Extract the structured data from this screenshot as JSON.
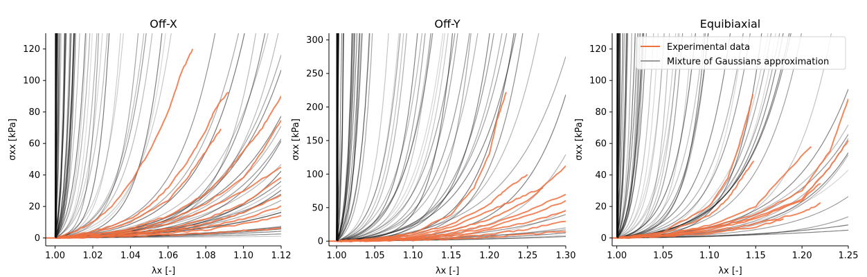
{
  "figure": {
    "legend": {
      "location": "upper-right",
      "panel": 2,
      "entries": [
        {
          "label": "Experimental data",
          "color": "#f07040"
        },
        {
          "label": "Mixture of Gaussians approximation",
          "color": "#999999"
        }
      ]
    },
    "colors": {
      "experimental": "#f07040",
      "model": "#000000"
    }
  },
  "chart_data": [
    {
      "type": "line",
      "title": "Off-X",
      "xlabel": "λx [-]",
      "ylabel": "σxx [kPa]",
      "xlim": [
        0.995,
        1.12
      ],
      "ylim": [
        -5,
        130
      ],
      "xticks": [
        "1.00",
        "1.02",
        "1.04",
        "1.06",
        "1.08",
        "1.10",
        "1.12"
      ],
      "xtick_values": [
        1.0,
        1.02,
        1.04,
        1.06,
        1.08,
        1.1,
        1.12
      ],
      "yticks": [
        "0",
        "20",
        "40",
        "60",
        "80",
        "100",
        "120"
      ],
      "ytick_values": [
        0,
        20,
        40,
        60,
        80,
        100,
        120
      ],
      "experimental_series": [
        {
          "x": [
            1.0,
            1.01,
            1.02,
            1.03,
            1.04,
            1.05,
            1.06,
            1.067,
            1.073
          ],
          "y": [
            0,
            4,
            10,
            20,
            35,
            55,
            80,
            105,
            120
          ]
        },
        {
          "x": [
            1.0,
            1.02,
            1.04,
            1.05,
            1.06,
            1.07,
            1.08,
            1.085,
            1.092
          ],
          "y": [
            0,
            4,
            12,
            20,
            32,
            48,
            68,
            82,
            93
          ]
        },
        {
          "x": [
            1.0,
            1.02,
            1.04,
            1.06,
            1.07,
            1.08,
            1.088
          ],
          "y": [
            0,
            3,
            10,
            24,
            38,
            55,
            69
          ]
        },
        {
          "x": [
            1.0,
            1.02,
            1.04,
            1.06,
            1.08,
            1.09,
            1.1,
            1.11,
            1.12
          ],
          "y": [
            0,
            2,
            6,
            14,
            28,
            40,
            55,
            70,
            90
          ]
        },
        {
          "x": [
            1.0,
            1.02,
            1.04,
            1.06,
            1.08,
            1.1,
            1.11,
            1.12
          ],
          "y": [
            0,
            2,
            5,
            11,
            22,
            38,
            55,
            75
          ]
        },
        {
          "x": [
            1.0,
            1.02,
            1.04,
            1.06,
            1.08,
            1.1,
            1.12
          ],
          "y": [
            0,
            1.5,
            4,
            9,
            18,
            30,
            45
          ]
        },
        {
          "x": [
            1.0,
            1.02,
            1.04,
            1.06,
            1.08,
            1.1,
            1.12
          ],
          "y": [
            0,
            1,
            3,
            6,
            12,
            22,
            38
          ]
        },
        {
          "x": [
            1.0,
            1.02,
            1.04,
            1.06,
            1.08,
            1.1,
            1.12
          ],
          "y": [
            0,
            1,
            2.5,
            5,
            9,
            16,
            27
          ]
        },
        {
          "x": [
            1.0,
            1.02,
            1.04,
            1.06,
            1.08,
            1.1,
            1.12
          ],
          "y": [
            0,
            0.8,
            2,
            4,
            7,
            12,
            20
          ]
        },
        {
          "x": [
            1.0,
            1.02,
            1.04,
            1.06,
            1.08,
            1.1,
            1.12
          ],
          "y": [
            0,
            0.5,
            1.5,
            3,
            5,
            9,
            14
          ]
        },
        {
          "x": [
            1.0,
            1.02,
            1.04,
            1.06,
            1.08,
            1.1,
            1.12
          ],
          "y": [
            0,
            0.5,
            1,
            2,
            3,
            4.5,
            6
          ]
        }
      ]
    },
    {
      "type": "line",
      "title": "Off-Y",
      "xlabel": "λx [-]",
      "ylabel": "σxx [kPa]",
      "xlim": [
        0.99,
        1.3
      ],
      "ylim": [
        -7,
        310
      ],
      "xticks": [
        "1.00",
        "1.05",
        "1.10",
        "1.15",
        "1.20",
        "1.25",
        "1.30"
      ],
      "xtick_values": [
        1.0,
        1.05,
        1.1,
        1.15,
        1.2,
        1.25,
        1.3
      ],
      "yticks": [
        "0",
        "50",
        "100",
        "150",
        "200",
        "250",
        "300"
      ],
      "ytick_values": [
        0,
        50,
        100,
        150,
        200,
        250,
        300
      ],
      "experimental_series": [
        {
          "x": [
            1.0,
            1.05,
            1.1,
            1.15,
            1.18,
            1.2,
            1.21,
            1.222
          ],
          "y": [
            0,
            3,
            12,
            40,
            80,
            130,
            180,
            222
          ]
        },
        {
          "x": [
            1.0,
            1.05,
            1.1,
            1.15,
            1.2,
            1.22,
            1.25
          ],
          "y": [
            0,
            3,
            10,
            25,
            55,
            75,
            100
          ]
        },
        {
          "x": [
            1.0,
            1.05,
            1.1,
            1.15,
            1.2,
            1.24,
            1.27
          ],
          "y": [
            0,
            2,
            8,
            20,
            45,
            65,
            80
          ]
        },
        {
          "x": [
            1.0,
            1.05,
            1.1,
            1.15,
            1.2,
            1.25,
            1.3
          ],
          "y": [
            0,
            2,
            6,
            16,
            32,
            60,
            112
          ]
        },
        {
          "x": [
            1.0,
            1.05,
            1.1,
            1.15,
            1.2,
            1.25,
            1.3
          ],
          "y": [
            0,
            1.5,
            5,
            12,
            25,
            45,
            70
          ]
        },
        {
          "x": [
            1.0,
            1.05,
            1.1,
            1.15,
            1.2,
            1.25,
            1.3
          ],
          "y": [
            0,
            1,
            4,
            10,
            20,
            38,
            60
          ]
        },
        {
          "x": [
            1.0,
            1.05,
            1.1,
            1.15,
            1.2,
            1.25,
            1.3
          ],
          "y": [
            0,
            1,
            3,
            8,
            16,
            28,
            45
          ]
        },
        {
          "x": [
            1.0,
            1.05,
            1.1,
            1.15,
            1.2,
            1.25,
            1.3
          ],
          "y": [
            0,
            0.5,
            2,
            5,
            10,
            18,
            30
          ]
        },
        {
          "x": [
            1.0,
            1.05,
            1.1,
            1.15,
            1.2,
            1.25,
            1.3
          ],
          "y": [
            0,
            0.5,
            1.5,
            3,
            6,
            10,
            15
          ]
        }
      ]
    },
    {
      "type": "line",
      "title": "Equibiaxial",
      "xlabel": "λx [-]",
      "ylabel": "σxx [kPa]",
      "xlim": [
        0.995,
        1.25
      ],
      "ylim": [
        -5,
        130
      ],
      "xticks": [
        "1.00",
        "1.05",
        "1.10",
        "1.15",
        "1.20",
        "1.25"
      ],
      "xtick_values": [
        1.0,
        1.05,
        1.1,
        1.15,
        1.2,
        1.25
      ],
      "yticks": [
        "0",
        "20",
        "40",
        "60",
        "80",
        "100",
        "120"
      ],
      "ytick_values": [
        0,
        20,
        40,
        60,
        80,
        100,
        120
      ],
      "experimental_series": [
        {
          "x": [
            1.0,
            1.05,
            1.1,
            1.12,
            1.13,
            1.14,
            1.147
          ],
          "y": [
            0,
            4,
            20,
            38,
            55,
            75,
            91
          ]
        },
        {
          "x": [
            1.0,
            1.05,
            1.1,
            1.12,
            1.135,
            1.148
          ],
          "y": [
            0,
            3,
            14,
            25,
            38,
            49
          ]
        },
        {
          "x": [
            1.0,
            1.05,
            1.1,
            1.15,
            1.2,
            1.23,
            1.25
          ],
          "y": [
            0,
            2,
            7,
            15,
            30,
            55,
            88
          ]
        },
        {
          "x": [
            1.0,
            1.05,
            1.1,
            1.15,
            1.2,
            1.23,
            1.25
          ],
          "y": [
            0,
            1.5,
            6,
            13,
            25,
            45,
            62
          ]
        },
        {
          "x": [
            1.0,
            1.05,
            1.1,
            1.15,
            1.2,
            1.22
          ],
          "y": [
            0,
            1.5,
            5,
            12,
            24,
            35
          ]
        },
        {
          "x": [
            1.0,
            1.05,
            1.1,
            1.15,
            1.18,
            1.21
          ],
          "y": [
            0,
            2,
            8,
            20,
            40,
            58
          ]
        },
        {
          "x": [
            1.0,
            1.05,
            1.1,
            1.15,
            1.2,
            1.22
          ],
          "y": [
            0,
            1,
            4,
            9,
            16,
            22
          ]
        },
        {
          "x": [
            1.0,
            1.05,
            1.1,
            1.15,
            1.18
          ],
          "y": [
            0,
            1,
            3,
            7,
            12
          ]
        }
      ]
    }
  ]
}
